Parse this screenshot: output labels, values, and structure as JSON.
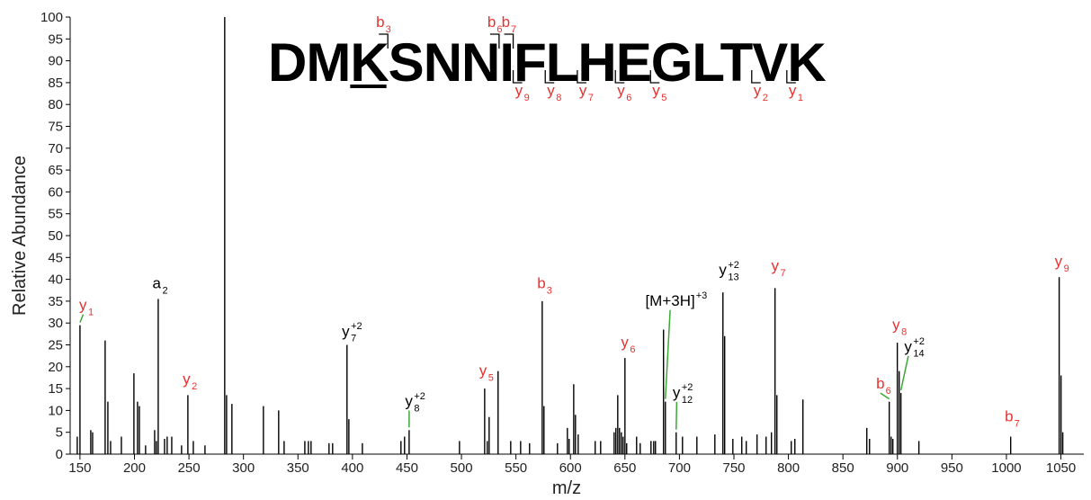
{
  "chart_data": {
    "type": "bar",
    "x_label": "m/z",
    "y_label": "Relative Abundance",
    "color": "#000000",
    "xlim": [
      141,
      1071
    ],
    "ylim": [
      0,
      100
    ],
    "xticks": [
      150,
      200,
      250,
      300,
      350,
      400,
      450,
      500,
      550,
      600,
      650,
      700,
      750,
      800,
      850,
      900,
      950,
      1000,
      1050
    ],
    "yticks": [
      0,
      5,
      10,
      15,
      20,
      25,
      30,
      35,
      40,
      45,
      50,
      55,
      60,
      65,
      70,
      75,
      80,
      85,
      90,
      95,
      100
    ],
    "x": [
      147.5,
      150.0,
      159.9,
      161.6,
      173.1,
      175.6,
      178.1,
      188.0,
      199.5,
      202.8,
      204.5,
      210.2,
      218.5,
      220.1,
      221.8,
      227.6,
      230.0,
      234.2,
      243.2,
      249.0,
      254.0,
      264.7,
      282.8,
      284.5,
      289.4,
      318.3,
      332.3,
      337.3,
      356.3,
      359.6,
      362.0,
      378.5,
      381.8,
      395.0,
      396.7,
      409.1,
      444.5,
      447.8,
      452.0,
      498.2,
      521.3,
      523.7,
      525.4,
      533.6,
      545.2,
      554.3,
      562.5,
      574.1,
      575.7,
      588.1,
      597.2,
      598.8,
      603.0,
      604.6,
      607.1,
      622.7,
      627.7,
      640.1,
      641.7,
      643.4,
      645.0,
      646.7,
      648.3,
      650.0,
      651.6,
      660.7,
      664.0,
      673.9,
      676.4,
      678.0,
      685.4,
      687.1,
      697.0,
      702.8,
      716.0,
      732.5,
      739.9,
      741.5,
      749.0,
      757.2,
      761.3,
      771.2,
      779.5,
      784.4,
      787.7,
      789.4,
      802.6,
      805.9,
      813.3,
      871.9,
      874.4,
      892.5,
      894.2,
      895.8,
      899.9,
      901.6,
      903.2,
      919.7,
      1003.9,
      1048.4,
      1050.1,
      1051.7
    ],
    "values": [
      4,
      29.5,
      5.5,
      5,
      26,
      12,
      3,
      4,
      18.5,
      12,
      11,
      2,
      5.5,
      3,
      35.5,
      3.5,
      4,
      4,
      2,
      13.5,
      3,
      2,
      100,
      13.5,
      11.5,
      11,
      10,
      3,
      3,
      3,
      3,
      2.5,
      2.5,
      25,
      8,
      2.5,
      3,
      4,
      5.5,
      3,
      15,
      3,
      8.5,
      19,
      3,
      3,
      2.5,
      35,
      11,
      2.5,
      6,
      3.5,
      16,
      9,
      4.5,
      3,
      3,
      5,
      6,
      13.5,
      6,
      5,
      4,
      22,
      2.5,
      4,
      2.5,
      3,
      3,
      3,
      28.5,
      12,
      5,
      4,
      4,
      4.5,
      37,
      27,
      3.5,
      4,
      3,
      4.5,
      4,
      5,
      38,
      13.5,
      3,
      3.5,
      12.5,
      6,
      3.5,
      12,
      4,
      3.5,
      25.5,
      19,
      14,
      3,
      4,
      40.5,
      18,
      5
    ],
    "annotations": [
      {
        "text": "y",
        "sub": "1",
        "x": 153,
        "y": 33,
        "color": "#e8312f",
        "leader": true
      },
      {
        "text": "a",
        "sub": "2",
        "x": 221,
        "y": 38,
        "color": "#000000"
      },
      {
        "text": "y",
        "sub": "2",
        "x": 248,
        "y": 16,
        "color": "#e8312f"
      },
      {
        "text": "y",
        "sub": "7",
        "sup": "+2",
        "x": 394,
        "y": 27,
        "color": "#000000"
      },
      {
        "text": "y",
        "sub": "8",
        "sup": "+2",
        "x": 452,
        "y": 11,
        "color": "#000000",
        "leader": true
      },
      {
        "text": "y",
        "sub": "5",
        "x": 520,
        "y": 18,
        "color": "#e8312f"
      },
      {
        "text": "b",
        "sub": "3",
        "x": 574,
        "y": 38,
        "color": "#e8312f"
      },
      {
        "text": "y",
        "sub": "6",
        "x": 650,
        "y": 24.5,
        "color": "#e8312f"
      },
      {
        "text": "[M+3H]",
        "sup": "+3",
        "x": 711,
        "y": 34,
        "color": "#000000",
        "leader": true
      },
      {
        "text": "y",
        "sub": "12",
        "sup": "+2",
        "x": 697.5,
        "y": 13,
        "color": "#000000",
        "leader": true
      },
      {
        "text": "y",
        "sub": "13",
        "sup": "+2",
        "x": 740,
        "y": 41,
        "color": "#000000"
      },
      {
        "text": "y",
        "sub": "7",
        "x": 788,
        "y": 42,
        "color": "#e8312f"
      },
      {
        "text": "b",
        "sub": "6",
        "x": 885,
        "y": 15,
        "color": "#e8312f",
        "leader": true
      },
      {
        "text": "y",
        "sub": "8",
        "x": 899,
        "y": 28.5,
        "color": "#e8312f"
      },
      {
        "text": "y",
        "sub": "14",
        "sup": "+2",
        "x": 910,
        "y": 23.5,
        "color": "#000000",
        "leader": true
      },
      {
        "text": "b",
        "sub": "7",
        "x": 1003,
        "y": 7.5,
        "color": "#e8312f"
      },
      {
        "text": "y",
        "sub": "9",
        "x": 1048,
        "y": 43,
        "color": "#e8312f"
      }
    ],
    "leader_color": "#3aaa35",
    "sequence": {
      "residues": [
        "D",
        "M",
        "K",
        "S",
        "N",
        "N",
        "I",
        "F",
        "L",
        "H",
        "E",
        "G",
        "L",
        "T",
        "V",
        "K"
      ],
      "underlined": 2,
      "color": "#e8312f",
      "b_ions": [
        {
          "text": "b",
          "sub": "3",
          "after": 3
        },
        {
          "text": "b",
          "sub": "6",
          "after": 6
        },
        {
          "text": "b",
          "sub": "7",
          "after": 7
        }
      ],
      "y_ions": [
        {
          "text": "y",
          "sub": "9",
          "after": 7
        },
        {
          "text": "y",
          "sub": "8",
          "after": 8
        },
        {
          "text": "y",
          "sub": "7",
          "after": 9
        },
        {
          "text": "y",
          "sub": "6",
          "after": 10
        },
        {
          "text": "y",
          "sub": "5",
          "after": 11
        },
        {
          "text": "y",
          "sub": "2",
          "after": 14
        },
        {
          "text": "y",
          "sub": "1",
          "after": 15
        }
      ]
    }
  }
}
